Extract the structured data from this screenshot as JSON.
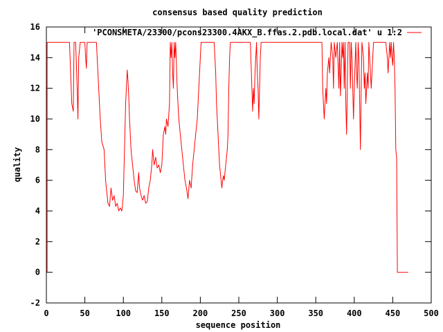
{
  "chart_data": {
    "type": "line",
    "title": "consensus based quality prediction",
    "xlabel": "sequence position",
    "ylabel": "quality",
    "xlim": [
      0,
      500
    ],
    "ylim": [
      -2,
      16
    ],
    "xticks": [
      0,
      50,
      100,
      150,
      200,
      250,
      300,
      350,
      400,
      450,
      500
    ],
    "yticks": [
      -2,
      0,
      2,
      4,
      6,
      8,
      10,
      12,
      14,
      16
    ],
    "grid": false,
    "legend_position": "top-right",
    "series": [
      {
        "name": "'PCONSMETA/23300/pcons23300.4AKX_B.ffas.2.pdb.local.dat' u 1:2",
        "color": "#ff0000",
        "points": [
          [
            1,
            0
          ],
          [
            1,
            15
          ],
          [
            30,
            15
          ],
          [
            33,
            11
          ],
          [
            35,
            10.5
          ],
          [
            36,
            15
          ],
          [
            38,
            15
          ],
          [
            40,
            12
          ],
          [
            41,
            10
          ],
          [
            42,
            14
          ],
          [
            44,
            15
          ],
          [
            48,
            15
          ],
          [
            50,
            15
          ],
          [
            51,
            14
          ],
          [
            52,
            13.3
          ],
          [
            53,
            15
          ],
          [
            65,
            15
          ],
          [
            68,
            12
          ],
          [
            70,
            10
          ],
          [
            72,
            8.5
          ],
          [
            75,
            8
          ],
          [
            77,
            6
          ],
          [
            79,
            5
          ],
          [
            80,
            4.5
          ],
          [
            82,
            4.3
          ],
          [
            84,
            5.5
          ],
          [
            86,
            4.7
          ],
          [
            88,
            5
          ],
          [
            90,
            4.3
          ],
          [
            92,
            4.5
          ],
          [
            94,
            4
          ],
          [
            96,
            4.2
          ],
          [
            98,
            4
          ],
          [
            100,
            5
          ],
          [
            101,
            7
          ],
          [
            103,
            11
          ],
          [
            104,
            12
          ],
          [
            105,
            13.2
          ],
          [
            106,
            12.5
          ],
          [
            107,
            11.5
          ],
          [
            108,
            10
          ],
          [
            110,
            8
          ],
          [
            112,
            7
          ],
          [
            114,
            6
          ],
          [
            116,
            5.3
          ],
          [
            118,
            5.2
          ],
          [
            120,
            6.5
          ],
          [
            121,
            5.5
          ],
          [
            123,
            5
          ],
          [
            125,
            4.7
          ],
          [
            127,
            5
          ],
          [
            129,
            4.5
          ],
          [
            131,
            4.6
          ],
          [
            133,
            5.5
          ],
          [
            135,
            6
          ],
          [
            137,
            7
          ],
          [
            138,
            8
          ],
          [
            140,
            7
          ],
          [
            142,
            7.5
          ],
          [
            144,
            6.8
          ],
          [
            146,
            7
          ],
          [
            148,
            6.5
          ],
          [
            150,
            7
          ],
          [
            152,
            9
          ],
          [
            154,
            9.5
          ],
          [
            155,
            9
          ],
          [
            156,
            10
          ],
          [
            158,
            9.5
          ],
          [
            160,
            11
          ],
          [
            161,
            15
          ],
          [
            162,
            14
          ],
          [
            163,
            15
          ],
          [
            164,
            13
          ],
          [
            165,
            12
          ],
          [
            166,
            15
          ],
          [
            167,
            14
          ],
          [
            168,
            15
          ],
          [
            170,
            12
          ],
          [
            172,
            10
          ],
          [
            174,
            9
          ],
          [
            176,
            8
          ],
          [
            178,
            7
          ],
          [
            180,
            6
          ],
          [
            182,
            5.5
          ],
          [
            184,
            4.8
          ],
          [
            186,
            6
          ],
          [
            188,
            5.5
          ],
          [
            190,
            7
          ],
          [
            192,
            8
          ],
          [
            194,
            9
          ],
          [
            196,
            10
          ],
          [
            198,
            12
          ],
          [
            200,
            14
          ],
          [
            201,
            15
          ],
          [
            218,
            15
          ],
          [
            220,
            13
          ],
          [
            221,
            11
          ],
          [
            222,
            10
          ],
          [
            223,
            9
          ],
          [
            224,
            8
          ],
          [
            225,
            7
          ],
          [
            226,
            6.5
          ],
          [
            227,
            6
          ],
          [
            228,
            5.5
          ],
          [
            229,
            6
          ],
          [
            230,
            6.3
          ],
          [
            231,
            6
          ],
          [
            232,
            6.5
          ],
          [
            233,
            7
          ],
          [
            235,
            8
          ],
          [
            236,
            9
          ],
          [
            237,
            12
          ],
          [
            238,
            14
          ],
          [
            239,
            15
          ],
          [
            265,
            15
          ],
          [
            267,
            12
          ],
          [
            268,
            10.5
          ],
          [
            269,
            12
          ],
          [
            270,
            11
          ],
          [
            271,
            13
          ],
          [
            272,
            14
          ],
          [
            273,
            15
          ],
          [
            274,
            13
          ],
          [
            275,
            12
          ],
          [
            276,
            10
          ],
          [
            277,
            12
          ],
          [
            278,
            14
          ],
          [
            279,
            15
          ],
          [
            358,
            15
          ],
          [
            359,
            12
          ],
          [
            360,
            11
          ],
          [
            361,
            10
          ],
          [
            362,
            11
          ],
          [
            363,
            12
          ],
          [
            364,
            11
          ],
          [
            365,
            13
          ],
          [
            367,
            14
          ],
          [
            368,
            13
          ],
          [
            370,
            15
          ],
          [
            372,
            14
          ],
          [
            373,
            12
          ],
          [
            374,
            15
          ],
          [
            376,
            14
          ],
          [
            378,
            15
          ],
          [
            380,
            12
          ],
          [
            381,
            15
          ],
          [
            382,
            11.5
          ],
          [
            383,
            13
          ],
          [
            384,
            15
          ],
          [
            385,
            14
          ],
          [
            386,
            15
          ],
          [
            387,
            12
          ],
          [
            388,
            15
          ],
          [
            389,
            11
          ],
          [
            390,
            9
          ],
          [
            391,
            12
          ],
          [
            392,
            15
          ],
          [
            394,
            15
          ],
          [
            395,
            12
          ],
          [
            396,
            15
          ],
          [
            397,
            14
          ],
          [
            398,
            12
          ],
          [
            399,
            10
          ],
          [
            400,
            12
          ],
          [
            402,
            15
          ],
          [
            403,
            13
          ],
          [
            404,
            12
          ],
          [
            405,
            15
          ],
          [
            406,
            14
          ],
          [
            407,
            11
          ],
          [
            408,
            8
          ],
          [
            409,
            12
          ],
          [
            410,
            15
          ],
          [
            412,
            14
          ],
          [
            413,
            12
          ],
          [
            414,
            13
          ],
          [
            415,
            11
          ],
          [
            416,
            12
          ],
          [
            417,
            13
          ],
          [
            418,
            12
          ],
          [
            419,
            15
          ],
          [
            421,
            13
          ],
          [
            422,
            12
          ],
          [
            423,
            13
          ],
          [
            424,
            14
          ],
          [
            425,
            15
          ],
          [
            441,
            15
          ],
          [
            443,
            14
          ],
          [
            444,
            13
          ],
          [
            445,
            14
          ],
          [
            446,
            15
          ],
          [
            447,
            14
          ],
          [
            448,
            15
          ],
          [
            449,
            14
          ],
          [
            450,
            13.5
          ],
          [
            451,
            15
          ],
          [
            452,
            14
          ],
          [
            453,
            12
          ],
          [
            454,
            8
          ],
          [
            455,
            7.5
          ],
          [
            456,
            0
          ],
          [
            470,
            0
          ]
        ]
      }
    ]
  }
}
